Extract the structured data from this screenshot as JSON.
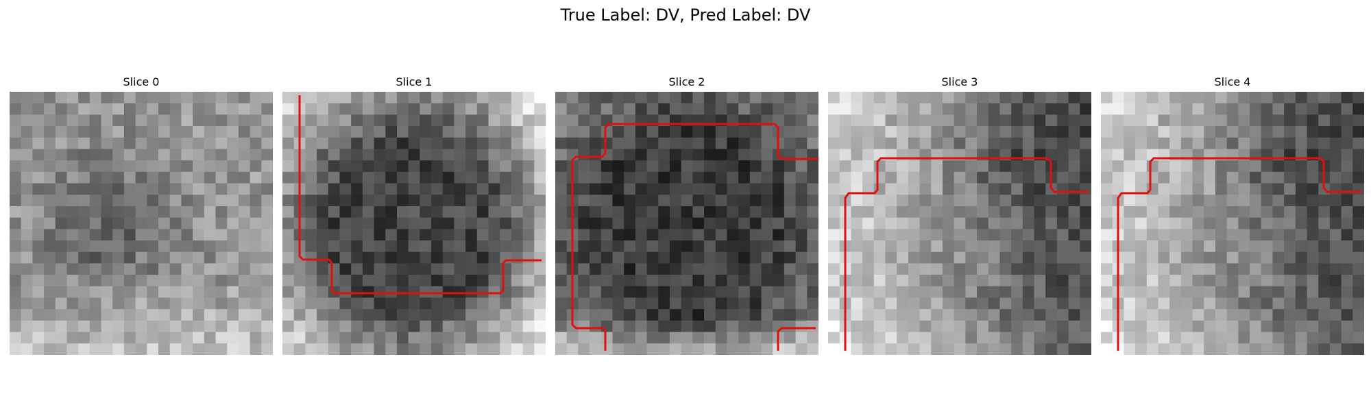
{
  "figure": {
    "suptitle": "True Label: DV, Pred Label: DV"
  },
  "slices": [
    {
      "title": "Slice 0",
      "seed": 11,
      "mode": "lightframe",
      "contour": null
    },
    {
      "title": "Slice 1",
      "seed": 23,
      "mode": "dark",
      "contour": "c1"
    },
    {
      "title": "Slice 2",
      "seed": 37,
      "mode": "darkmid",
      "contour": "c2"
    },
    {
      "title": "Slice 3",
      "seed": 51,
      "mode": "lightleft",
      "contour": "c3"
    },
    {
      "title": "Slice 4",
      "seed": 51,
      "mode": "lightleft",
      "contour": "c3"
    }
  ],
  "colors": {
    "background": "#ffffff",
    "contour": "#e01010"
  }
}
